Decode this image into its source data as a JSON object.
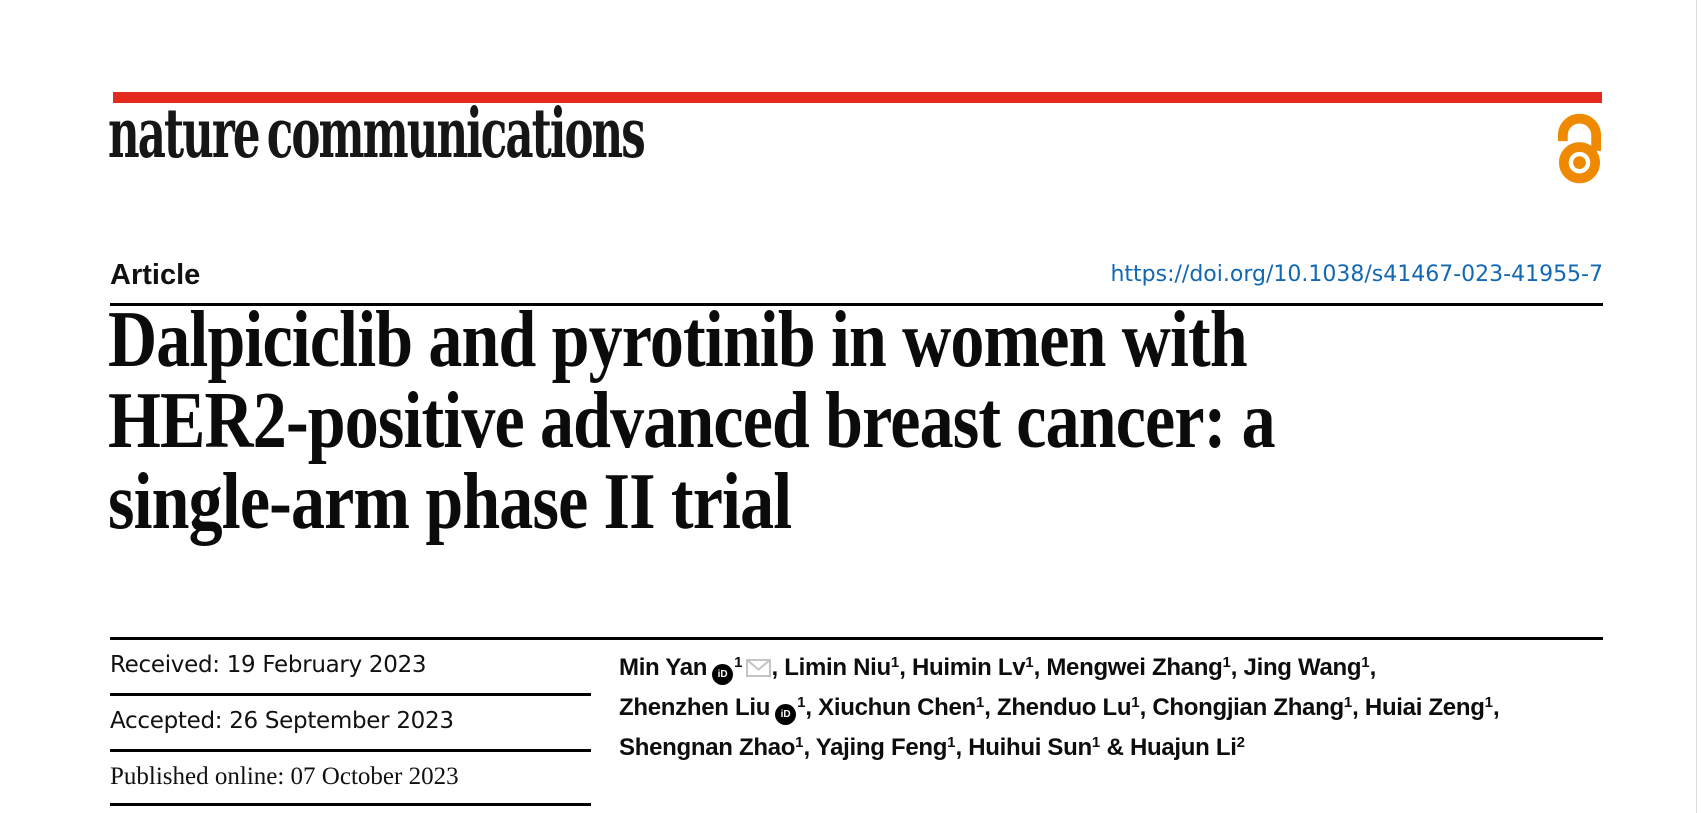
{
  "masthead": {
    "journal_name": "nature communications",
    "brand_bar_color": "#e4291f",
    "open_access_icon": "open-access-padlock-icon",
    "open_access_color": "#ef8a00"
  },
  "article_header": {
    "kicker": "Article",
    "doi_link": "https://doi.org/10.1038/s41467-023-41955-7",
    "doi_color": "#1268b3"
  },
  "title": {
    "lines": [
      "Dalpiciclib and pyrotinib in women with",
      "HER2-positive advanced breast cancer: a",
      "single-arm phase II trial"
    ]
  },
  "dates": [
    {
      "key": "received",
      "label": "Received",
      "value": "19 February 2023",
      "serif": false
    },
    {
      "key": "accepted",
      "label": "Accepted",
      "value": "26 September 2023",
      "serif": false
    },
    {
      "key": "published-online",
      "label": "Published online",
      "value": "07 October 2023",
      "serif": true
    }
  ],
  "icons": {
    "orcid_text": "iD",
    "orcid_name": "orcid-id-icon",
    "envelope_name": "email-envelope-icon",
    "envelope_color": "#c4c4c4"
  },
  "authors": {
    "lines": [
      {
        "segments": [
          {
            "t": "Min Yan"
          },
          {
            "i": "orcid"
          },
          {
            "s": "1"
          },
          {
            "i": "envelope"
          },
          {
            "t": ", Limin Niu"
          },
          {
            "s": "1"
          },
          {
            "t": ", Huimin Lv"
          },
          {
            "s": "1"
          },
          {
            "t": ", Mengwei Zhang"
          },
          {
            "s": "1"
          },
          {
            "t": ", Jing Wang"
          },
          {
            "s": "1"
          },
          {
            "t": ","
          }
        ]
      },
      {
        "segments": [
          {
            "t": "Zhenzhen Liu"
          },
          {
            "i": "orcid"
          },
          {
            "s": "1"
          },
          {
            "t": ", Xiuchun Chen"
          },
          {
            "s": "1"
          },
          {
            "t": ", Zhenduo Lu"
          },
          {
            "s": "1"
          },
          {
            "t": ", Chongjian Zhang"
          },
          {
            "s": "1"
          },
          {
            "t": ", Huiai Zeng"
          },
          {
            "s": "1"
          },
          {
            "t": ","
          }
        ]
      },
      {
        "segments": [
          {
            "t": "Shengnan Zhao"
          },
          {
            "s": "1"
          },
          {
            "t": ", Yajing Feng"
          },
          {
            "s": "1"
          },
          {
            "t": ", Huihui Sun"
          },
          {
            "s": "1"
          },
          {
            "t": " & Huajun Li"
          },
          {
            "s": "2"
          }
        ]
      }
    ]
  }
}
